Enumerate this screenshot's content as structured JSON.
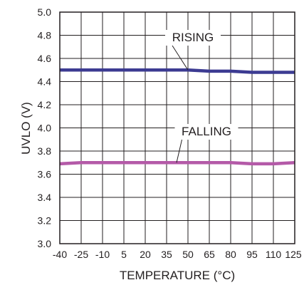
{
  "chart_data": {
    "type": "line",
    "title": "",
    "xlabel": "TEMPERATURE (°C)",
    "ylabel": "UVLO (V)",
    "xlim": [
      -40,
      125
    ],
    "ylim": [
      3.0,
      5.0
    ],
    "x_ticks": [
      -40,
      -25,
      -10,
      5,
      20,
      35,
      50,
      65,
      80,
      95,
      110,
      125
    ],
    "x_tick_labels": [
      "-40",
      "-25",
      "-10",
      "5",
      "20",
      "35",
      "50",
      "65",
      "80",
      "95",
      "110",
      "125"
    ],
    "y_ticks": [
      3.0,
      3.2,
      3.4,
      3.6,
      3.8,
      4.0,
      4.2,
      4.4,
      4.6,
      4.8,
      5.0
    ],
    "y_tick_labels": [
      "3.0",
      "3.2",
      "3.4",
      "3.6",
      "3.8",
      "4.0",
      "4.2",
      "4.4",
      "4.6",
      "4.8",
      "5.0"
    ],
    "grid": true,
    "legend": "none",
    "series": [
      {
        "name": "RISING",
        "color": "#3c3b92",
        "x": [
          -40,
          -25,
          -10,
          5,
          20,
          35,
          50,
          65,
          80,
          95,
          110,
          125
        ],
        "values": [
          4.5,
          4.5,
          4.5,
          4.5,
          4.5,
          4.5,
          4.5,
          4.49,
          4.49,
          4.48,
          4.48,
          4.48
        ]
      },
      {
        "name": "FALLING",
        "color": "#b45aa8",
        "x": [
          -40,
          -25,
          -10,
          5,
          20,
          35,
          50,
          65,
          80,
          95,
          110,
          125
        ],
        "values": [
          3.69,
          3.7,
          3.7,
          3.7,
          3.7,
          3.7,
          3.7,
          3.7,
          3.7,
          3.69,
          3.69,
          3.7
        ]
      }
    ],
    "annotations": [
      {
        "text": "RISING",
        "series": 0,
        "x": 50
      },
      {
        "text": "FALLING",
        "series": 1,
        "x": 42
      }
    ]
  }
}
